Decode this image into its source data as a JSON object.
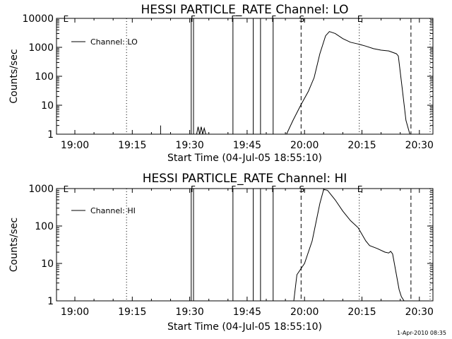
{
  "footer": {
    "timestamp": "1-Apr-2010 08:35"
  },
  "chart_data": [
    {
      "type": "line",
      "title": "HESSI PARTICLE_RATE Channel: LO",
      "xlabel": "Start Time (04-Jul-05 18:55:10)",
      "ylabel": "Counts/sec",
      "x_units": "minutes after 19:00",
      "xlim": [
        -6,
        34
      ],
      "ylim": [
        1,
        10000
      ],
      "yscale": "log",
      "grid": false,
      "legend_position": "top-left",
      "x_ticks": [
        {
          "x": 0,
          "label": "19:00"
        },
        {
          "x": 15,
          "label": "19:15"
        },
        {
          "x": 30,
          "label": "19:30"
        },
        {
          "x": 45,
          "label": "19:45"
        },
        {
          "x": 60,
          "label": "20:00"
        },
        {
          "x": 75,
          "label": "20:15"
        },
        {
          "x": 90,
          "label": "20:30"
        }
      ],
      "y_ticks": [
        {
          "y": 1,
          "label": "1"
        },
        {
          "y": 10,
          "label": "10"
        },
        {
          "y": 100,
          "label": "100"
        },
        {
          "y": 1000,
          "label": "1000"
        },
        {
          "y": 10000,
          "label": "10000"
        }
      ],
      "series": [
        {
          "name": "Channel: LO",
          "color": "#000000",
          "x": [
            55.3,
            57,
            59,
            61,
            62.5,
            64,
            65.5,
            66.5,
            68,
            70,
            72,
            74,
            76,
            78,
            80,
            82,
            84,
            84.5,
            85.5,
            86.5,
            87.5
          ],
          "y": [
            1,
            3,
            10,
            30,
            90,
            600,
            2500,
            3500,
            3000,
            2000,
            1500,
            1300,
            1100,
            900,
            800,
            750,
            600,
            500,
            40,
            3,
            1
          ]
        },
        {
          "name": "",
          "color": "#000000",
          "x": [
            22.4,
            22.4
          ],
          "y": [
            1,
            2
          ]
        },
        {
          "name": "",
          "color": "#000000",
          "x": [
            31.8,
            32.2,
            32.6,
            33.0,
            33.4,
            33.8,
            34.2
          ],
          "y": [
            1,
            1.8,
            1,
            1.8,
            1,
            1.6,
            1
          ]
        }
      ],
      "vertical_lines": [
        {
          "x": 13.5,
          "style": "dotted"
        },
        {
          "x": 30.4,
          "style": "solid"
        },
        {
          "x": 31.0,
          "style": "solid"
        },
        {
          "x": 41.3,
          "style": "solid"
        },
        {
          "x": 46.6,
          "style": "solid"
        },
        {
          "x": 48.5,
          "style": "solid"
        },
        {
          "x": 51.8,
          "style": "solid"
        },
        {
          "x": 59.1,
          "style": "dashed"
        },
        {
          "x": 74.3,
          "style": "dotted"
        },
        {
          "x": 87.8,
          "style": "dashed"
        },
        {
          "x": 92.8,
          "style": "dotted"
        }
      ],
      "markers": [
        {
          "x": -2.5,
          "label": "E"
        },
        {
          "x": 30.7,
          "label": "F"
        },
        {
          "x": 41.3,
          "label": "F"
        },
        {
          "x": 51.8,
          "label": "F"
        },
        {
          "x": 59.1,
          "label": "S"
        },
        {
          "x": 74.3,
          "label": "E"
        }
      ]
    },
    {
      "type": "line",
      "title": "HESSI PARTICLE_RATE Channel: HI",
      "xlabel": "Start Time (04-Jul-05 18:55:10)",
      "ylabel": "Counts/sec",
      "x_units": "minutes after 19:00",
      "xlim": [
        -6,
        34
      ],
      "ylim": [
        1,
        1000
      ],
      "yscale": "log",
      "grid": false,
      "legend_position": "top-left",
      "x_ticks": [
        {
          "x": 0,
          "label": "19:00"
        },
        {
          "x": 15,
          "label": "19:15"
        },
        {
          "x": 30,
          "label": "19:30"
        },
        {
          "x": 45,
          "label": "19:45"
        },
        {
          "x": 60,
          "label": "20:00"
        },
        {
          "x": 75,
          "label": "20:15"
        },
        {
          "x": 90,
          "label": "20:30"
        }
      ],
      "y_ticks": [
        {
          "y": 1,
          "label": "1"
        },
        {
          "y": 10,
          "label": "10"
        },
        {
          "y": 100,
          "label": "100"
        },
        {
          "y": 1000,
          "label": "1000"
        }
      ],
      "series": [
        {
          "name": "Channel: HI",
          "color": "#000000",
          "x": [
            57.2,
            58,
            60,
            62,
            64,
            65,
            66,
            68,
            70,
            72,
            74,
            76,
            77,
            79,
            81,
            82,
            82.5,
            83,
            84,
            84.7,
            85.3,
            86
          ],
          "y": [
            1,
            5,
            10,
            40,
            400,
            950,
            900,
            500,
            250,
            140,
            90,
            40,
            30,
            25,
            20,
            19,
            21,
            18,
            5,
            2,
            1.3,
            1
          ]
        }
      ],
      "vertical_lines": [
        {
          "x": 13.5,
          "style": "dotted"
        },
        {
          "x": 30.4,
          "style": "solid"
        },
        {
          "x": 31.0,
          "style": "solid"
        },
        {
          "x": 41.3,
          "style": "solid"
        },
        {
          "x": 46.6,
          "style": "solid"
        },
        {
          "x": 48.5,
          "style": "solid"
        },
        {
          "x": 51.8,
          "style": "solid"
        },
        {
          "x": 59.1,
          "style": "dashed"
        },
        {
          "x": 74.3,
          "style": "dotted"
        },
        {
          "x": 87.8,
          "style": "dashed"
        },
        {
          "x": 92.8,
          "style": "dotted"
        }
      ],
      "markers": [
        {
          "x": -2.5,
          "label": "E"
        },
        {
          "x": 30.7,
          "label": "F"
        },
        {
          "x": 41.3,
          "label": "F"
        },
        {
          "x": 51.8,
          "label": "F"
        },
        {
          "x": 59.1,
          "label": "S"
        },
        {
          "x": 74.3,
          "label": "E"
        }
      ]
    }
  ]
}
